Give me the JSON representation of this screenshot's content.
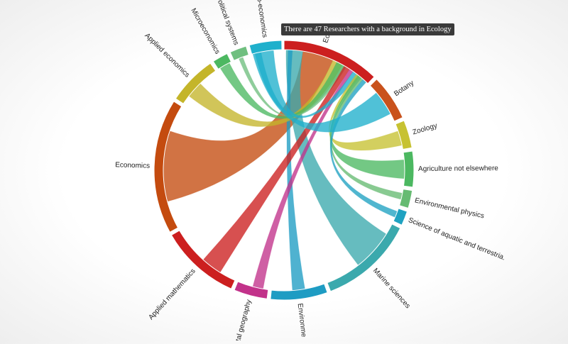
{
  "tooltip": {
    "text": "There are 47 Researchers with a background in Ecology"
  },
  "groups": [
    {
      "key": "ecology",
      "label": "Ec",
      "color": "#cc1f1f"
    },
    {
      "key": "botany",
      "label": "Botany",
      "color": "#c9521c"
    },
    {
      "key": "zoology",
      "label": "Zoology",
      "color": "#c7c232"
    },
    {
      "key": "agriculture",
      "label": "Agriculture not elsewhere",
      "color": "#4cb861"
    },
    {
      "key": "envphysics",
      "label": "Environmental physics",
      "color": "#66bb72"
    },
    {
      "key": "aquatic",
      "label": "Science of aquatic and terrestria.",
      "color": "#1fa2c1"
    },
    {
      "key": "marine",
      "label": "Marine sciences",
      "color": "#3ba9ad"
    },
    {
      "key": "envsci",
      "label": "Environme",
      "color": "#1e9cc3"
    },
    {
      "key": "envgeo",
      "label": "ental geography",
      "color": "#c2328a"
    },
    {
      "key": "appliedmath",
      "label": "Applied mathematics",
      "color": "#cc1f1f"
    },
    {
      "key": "economics",
      "label": "Economics",
      "color": "#c44b0f"
    },
    {
      "key": "appliedecon",
      "label": "Applied economics",
      "color": "#c4b52a"
    },
    {
      "key": "microecon",
      "label": "Microeconomics",
      "color": "#4cb861"
    },
    {
      "key": "polsys",
      "label": "Political systems",
      "color": "#6fbf7f"
    },
    {
      "key": "bioecon",
      "label": "o-economics",
      "color": "#1fb0cc"
    }
  ],
  "colors": {
    "background": "#ffffff",
    "arc_border": "#ffffff",
    "tooltip_bg": "#3a3a3a"
  }
}
